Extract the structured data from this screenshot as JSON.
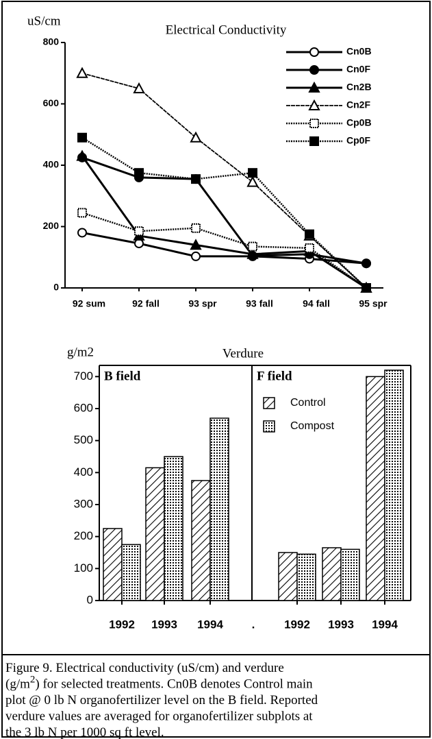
{
  "chart_data": [
    {
      "type": "line",
      "title": "Electrical Conductivity",
      "y_label": "uS/cm",
      "categories": [
        "92 sum",
        "92 fall",
        "93 spr",
        "93 fall",
        "94 fall",
        "95 spr"
      ],
      "ylim": [
        0,
        800
      ],
      "yticks": [
        0,
        200,
        400,
        600,
        800
      ],
      "series": [
        {
          "name": "Cn0B",
          "color": "#000000",
          "marker": "circle-open",
          "line_style": "solid",
          "values": [
            180,
            145,
            103,
            103,
            95,
            80
          ]
        },
        {
          "name": "Cn0F",
          "color": "#000000",
          "marker": "circle-filled",
          "line_style": "solid",
          "values": [
            425,
            360,
            355,
            105,
            110,
            80
          ]
        },
        {
          "name": "Cn2B",
          "color": "#000000",
          "marker": "triangle-filled",
          "line_style": "solid",
          "values": [
            430,
            170,
            140,
            110,
            120,
            0
          ]
        },
        {
          "name": "Cn2F",
          "color": "#000000",
          "marker": "triangle-open",
          "line_style": "thin",
          "values": [
            700,
            650,
            490,
            345,
            170,
            0
          ]
        },
        {
          "name": "Cp0B",
          "color": "#000000",
          "marker": "square-open",
          "line_style": "dotted",
          "values": [
            245,
            185,
            195,
            135,
            130,
            0
          ]
        },
        {
          "name": "Cp0F",
          "color": "#000000",
          "marker": "square-filled",
          "line_style": "dotted",
          "values": [
            490,
            375,
            355,
            375,
            175,
            0
          ]
        }
      ]
    },
    {
      "type": "bar",
      "title": "Verdure",
      "y_label": "g/m2",
      "categories": [
        "1992",
        "1993",
        "1994"
      ],
      "panel_gap_label": ".",
      "ylim": [
        0,
        735
      ],
      "yticks": [
        0,
        100,
        200,
        300,
        400,
        500,
        600,
        700
      ],
      "series": [
        {
          "name": "Control",
          "pattern": "hatch"
        },
        {
          "name": "Compost",
          "pattern": "dots"
        }
      ],
      "panels": [
        {
          "title": "B field",
          "values": [
            [
              225,
              415,
              375
            ],
            [
              175,
              450,
              570
            ]
          ]
        },
        {
          "title": "F field",
          "values": [
            [
              150,
              165,
              700
            ],
            [
              145,
              160,
              720
            ]
          ]
        }
      ]
    }
  ],
  "caption": {
    "lines": [
      [
        "Figure 9. Electrical conductivity (uS/cm) and verdure"
      ],
      [
        "(g/m",
        "2",
        ") for selected treatments. Cn0B denotes Control main"
      ],
      [
        "plot @ 0 lb N organofertilizer level on the B field. Reported"
      ],
      [
        "verdure values are averaged for organofertilizer subplots at"
      ],
      [
        "the 3 lb N per 1000 sq ft level."
      ]
    ]
  }
}
